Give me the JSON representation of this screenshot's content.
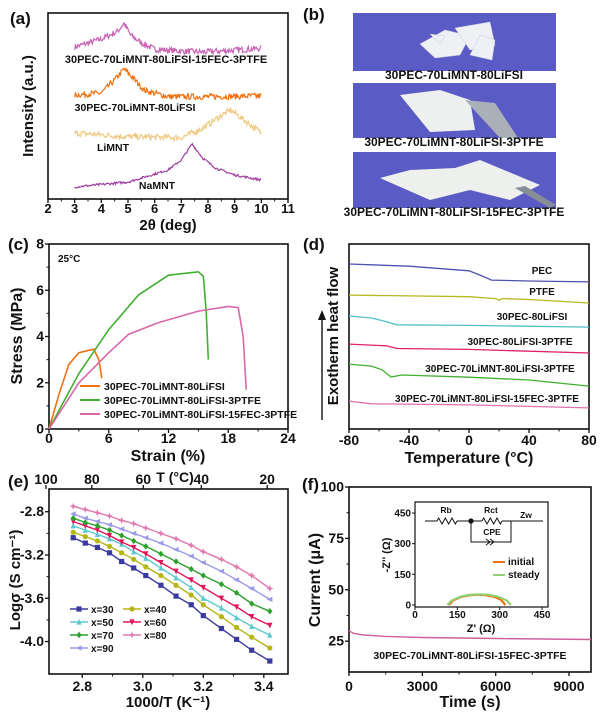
{
  "photos": {
    "panel_label": "(b)",
    "background_color": "#5b5bc6",
    "items": [
      {
        "caption": "30PEC-70LiMNT-80LiFSI",
        "content": "white flakes"
      },
      {
        "caption": "30PEC-70LiMNT-80LiFSI-3PTFE",
        "content": "flexible film on metal rod"
      },
      {
        "caption": "30PEC-70LiMNT-80LiFSI-15FEC-3PTFE",
        "content": "flexible film on metal rod"
      }
    ]
  },
  "chart_data": [
    {
      "panel_label": "(a)",
      "type": "line",
      "xlabel": "2θ (deg)",
      "ylabel": "Intensity (a.u.)",
      "xlim": [
        2,
        11
      ],
      "ylim": [
        0,
        100
      ],
      "xticks": [
        "2",
        "3",
        "4",
        "5",
        "6",
        "7",
        "8",
        "9",
        "10",
        "11"
      ],
      "grid": false,
      "series": [
        {
          "name": "30PEC-70LiMNT-80LiFSI-15FEC-3PTFE",
          "color": "#c862b4",
          "points": [
            [
              3,
              81.7
            ],
            [
              4,
              86
            ],
            [
              4.6,
              90
            ],
            [
              4.85,
              94.6
            ],
            [
              5.1,
              88
            ],
            [
              5.5,
              84
            ],
            [
              6,
              80.5
            ],
            [
              7,
              79.5
            ],
            [
              7.8,
              79
            ],
            [
              9,
              80
            ],
            [
              10,
              81
            ]
          ]
        },
        {
          "name": "30PEC-70LiMNT-80LiFSI",
          "color": "#f07010",
          "points": [
            [
              3,
              55.9
            ],
            [
              4,
              57
            ],
            [
              4.5,
              64
            ],
            [
              4.85,
              69.9
            ],
            [
              5.2,
              65
            ],
            [
              5.6,
              58.5
            ],
            [
              6.5,
              55
            ],
            [
              8,
              55
            ],
            [
              10,
              55.4
            ]
          ]
        },
        {
          "name": "LiMNT",
          "color": "#f0c880",
          "points": [
            [
              3,
              35.5
            ],
            [
              5,
              33.5
            ],
            [
              7,
              33
            ],
            [
              7.8,
              38
            ],
            [
              8.5,
              45
            ],
            [
              8.85,
              47.8
            ],
            [
              9.3,
              43
            ],
            [
              10,
              35.5
            ]
          ]
        },
        {
          "name": "NaMNT",
          "color": "#a040a0",
          "points": [
            [
              3,
              6.5
            ],
            [
              5,
              9.1
            ],
            [
              6.5,
              15.6
            ],
            [
              7,
              21
            ],
            [
              7.4,
              29.6
            ],
            [
              7.8,
              22
            ],
            [
              8.3,
              16.5
            ],
            [
              9,
              12.9
            ],
            [
              10,
              10.2
            ]
          ]
        }
      ]
    },
    {
      "panel_label": "(c)",
      "type": "line",
      "xlabel": "Strain (%)",
      "ylabel": "Stress (MPa)",
      "xlim": [
        0,
        24
      ],
      "ylim": [
        0,
        8
      ],
      "xticks": [
        "0",
        "6",
        "12",
        "18",
        "24"
      ],
      "yticks": [
        "0",
        "2",
        "4",
        "6",
        "8"
      ],
      "annotation": "25°C",
      "legend": "bottom-center",
      "series": [
        {
          "name": "30PEC-70LiMNT-80LiFSI",
          "color": "#f07010",
          "points": [
            [
              0,
              0
            ],
            [
              1,
              1.5
            ],
            [
              2,
              2.8
            ],
            [
              3,
              3.3
            ],
            [
              4.5,
              3.45
            ],
            [
              5,
              3.0
            ],
            [
              5.3,
              2.2
            ]
          ]
        },
        {
          "name": "30PEC-70LiMNT-80LiFSI-3PTFE",
          "color": "#40b030",
          "points": [
            [
              0,
              0
            ],
            [
              3,
              2.4
            ],
            [
              6,
              4.3
            ],
            [
              9,
              5.8
            ],
            [
              12,
              6.65
            ],
            [
              15,
              6.8
            ],
            [
              15.5,
              6.6
            ],
            [
              15.8,
              5.0
            ],
            [
              16,
              3.0
            ]
          ]
        },
        {
          "name": "30PEC-70LiMNT-80LiFSI-15FEC-3PTFE",
          "color": "#d868a8",
          "points": [
            [
              0,
              0
            ],
            [
              3,
              2.0
            ],
            [
              6,
              3.3
            ],
            [
              8,
              4.1
            ],
            [
              11,
              4.6
            ],
            [
              15,
              5.1
            ],
            [
              18,
              5.3
            ],
            [
              19,
              5.25
            ],
            [
              19.5,
              4.0
            ],
            [
              19.8,
              1.7
            ]
          ]
        }
      ]
    },
    {
      "panel_label": "(d)",
      "type": "line",
      "xlabel": "Temperature (°C)",
      "ylabel": "Exotherm heat flow",
      "xlim": [
        -80,
        80
      ],
      "ylim": [
        0,
        100
      ],
      "xticks": [
        "-80",
        "-40",
        "0",
        "40",
        "80"
      ],
      "series": [
        {
          "name": "PEC",
          "color": "#5050b0",
          "points": [
            [
              -80,
              89.2
            ],
            [
              -40,
              88
            ],
            [
              0,
              85.5
            ],
            [
              8,
              83
            ],
            [
              15,
              80.5
            ],
            [
              40,
              80
            ],
            [
              80,
              79.5
            ]
          ]
        },
        {
          "name": "PTFE",
          "color": "#b8b820",
          "points": [
            [
              -80,
              72.4
            ],
            [
              0,
              71.5
            ],
            [
              18,
              70.5
            ],
            [
              20,
              69.5
            ],
            [
              22,
              70.5
            ],
            [
              40,
              70
            ],
            [
              80,
              68.1
            ]
          ]
        },
        {
          "name": "30PEC-80LiFSI",
          "color": "#50c0c8",
          "points": [
            [
              -80,
              61.1
            ],
            [
              -65,
              60
            ],
            [
              -55,
              58
            ],
            [
              -48,
              56.3
            ],
            [
              0,
              56
            ],
            [
              80,
              55.1
            ]
          ]
        },
        {
          "name": "30PEC-80LiFSI-3PTFE",
          "color": "#e0206a",
          "points": [
            [
              -80,
              45.9
            ],
            [
              -55,
              45
            ],
            [
              -48,
              43.5
            ],
            [
              0,
              43
            ],
            [
              80,
              41.1
            ]
          ]
        },
        {
          "name": "30PEC-70LiMNT-80LiFSI-3PTFE",
          "color": "#40b030",
          "points": [
            [
              -80,
              35.1
            ],
            [
              -65,
              34
            ],
            [
              -58,
              32
            ],
            [
              -52,
              28.1
            ],
            [
              -45,
              29.2
            ],
            [
              0,
              28
            ],
            [
              40,
              26.5
            ],
            [
              80,
              23.2
            ]
          ]
        },
        {
          "name": "30PEC-70LiMNT-80LiFSI-15FEC-3PTFE",
          "color": "#e070b0",
          "points": [
            [
              -80,
              15.1
            ],
            [
              -65,
              13.6
            ],
            [
              0,
              13
            ],
            [
              80,
              11.4
            ]
          ]
        }
      ]
    },
    {
      "panel_label": "(e)",
      "type": "line",
      "xlabel": "1000/T (K⁻¹)",
      "ylabel": "Logσ (S cm⁻¹)",
      "top_xlabel": "T (°C)",
      "xlim": [
        2.69,
        3.48
      ],
      "ylim": [
        -4.3,
        -2.59
      ],
      "xticks": [
        "2.8",
        "3.0",
        "3.2",
        "3.4"
      ],
      "yticks": [
        "-2.8",
        "-3.2",
        "-3.6",
        "-4.0"
      ],
      "top_xticks": [
        "100",
        "80",
        "60",
        "40",
        "20"
      ],
      "legend": "bottom-left",
      "x": [
        2.77,
        2.81,
        2.85,
        2.89,
        2.93,
        2.97,
        3.01,
        3.06,
        3.11,
        3.16,
        3.2,
        3.26,
        3.31,
        3.36,
        3.42
      ],
      "series": [
        {
          "name": "x=30",
          "color": "#3a3aa0",
          "marker": "square",
          "values": [
            -3.04,
            -3.09,
            -3.13,
            -3.18,
            -3.26,
            -3.32,
            -3.39,
            -3.48,
            -3.58,
            -3.66,
            -3.76,
            -3.88,
            -3.98,
            -4.08,
            -4.18
          ]
        },
        {
          "name": "x=40",
          "color": "#b5b515",
          "marker": "circle",
          "values": [
            -2.99,
            -3.03,
            -3.07,
            -3.12,
            -3.18,
            -3.24,
            -3.31,
            -3.39,
            -3.48,
            -3.57,
            -3.66,
            -3.77,
            -3.87,
            -3.96,
            -4.06
          ]
        },
        {
          "name": "x=50",
          "color": "#5cc8d0",
          "marker": "triangle-up",
          "values": [
            -2.93,
            -2.97,
            -3.01,
            -3.05,
            -3.1,
            -3.17,
            -3.23,
            -3.32,
            -3.41,
            -3.5,
            -3.6,
            -3.69,
            -3.78,
            -3.86,
            -3.94
          ]
        },
        {
          "name": "x=60",
          "color": "#e0155a",
          "marker": "triangle-down",
          "values": [
            -2.89,
            -2.93,
            -2.97,
            -3.02,
            -3.08,
            -3.13,
            -3.19,
            -3.27,
            -3.35,
            -3.43,
            -3.5,
            -3.6,
            -3.68,
            -3.77,
            -3.85
          ]
        },
        {
          "name": "x=70",
          "color": "#2ca02c",
          "marker": "diamond",
          "values": [
            -2.86,
            -2.9,
            -2.93,
            -2.97,
            -3.02,
            -3.07,
            -3.12,
            -3.19,
            -3.26,
            -3.33,
            -3.39,
            -3.47,
            -3.55,
            -3.65,
            -3.72
          ]
        },
        {
          "name": "x=80",
          "color": "#e07ab0",
          "marker": "star",
          "values": [
            -2.75,
            -2.78,
            -2.81,
            -2.84,
            -2.88,
            -2.91,
            -2.95,
            -3.0,
            -3.05,
            -3.11,
            -3.17,
            -3.24,
            -3.31,
            -3.39,
            -3.51
          ]
        },
        {
          "name": "x=90",
          "color": "#9a9ae8",
          "marker": "triangle-left",
          "values": [
            -2.82,
            -2.86,
            -2.89,
            -2.92,
            -2.96,
            -3.0,
            -3.04,
            -3.09,
            -3.15,
            -3.21,
            -3.27,
            -3.35,
            -3.43,
            -3.51,
            -3.61
          ]
        }
      ]
    },
    {
      "panel_label": "(f)",
      "type": "line",
      "xlabel": "Time (s)",
      "ylabel": "Current (μA)",
      "xlim": [
        0,
        9900
      ],
      "ylim": [
        10,
        100
      ],
      "xticks": [
        "0",
        "3000",
        "6000",
        "9000"
      ],
      "yticks": [
        "25",
        "50",
        "75",
        "100"
      ],
      "annotation": "30PEC-70LiMNT-80LiFSI-15FEC-3PTFE",
      "series": [
        {
          "color": "#d060a0",
          "points": [
            [
              0,
              30
            ],
            [
              200,
              28.8
            ],
            [
              600,
              28
            ],
            [
              1500,
              27.3
            ],
            [
              3000,
              26.8
            ],
            [
              6000,
              26.3
            ],
            [
              9900,
              25.8
            ]
          ]
        }
      ]
    },
    {
      "panel_label": "(f) inset",
      "type": "scatter",
      "xlabel": "Z' (Ω)",
      "ylabel": "-Z'' (Ω)",
      "xlim": [
        0,
        471
      ],
      "ylim": [
        -10,
        504
      ],
      "xticks": [
        "0",
        "150",
        "300",
        "450"
      ],
      "yticks": [
        "0",
        "150",
        "300",
        "450"
      ],
      "legend": "right",
      "circuit": {
        "labels": [
          "Rb",
          "Rct",
          "CPE",
          "Zw"
        ]
      },
      "series": [
        {
          "name": "initial",
          "color": "#f07010",
          "points": [
            [
              120,
              0
            ],
            [
              135,
              22
            ],
            [
              160,
              38
            ],
            [
              190,
              47
            ],
            [
              220,
              50
            ],
            [
              250,
              48
            ],
            [
              280,
              40
            ],
            [
              305,
              25
            ],
            [
              320,
              0
            ]
          ]
        },
        {
          "name": "steady",
          "color": "#90d070",
          "points": [
            [
              115,
              0
            ],
            [
              130,
              22
            ],
            [
              160,
              40
            ],
            [
              190,
              49
            ],
            [
              225,
              52
            ],
            [
              260,
              50
            ],
            [
              295,
              40
            ],
            [
              325,
              22
            ],
            [
              340,
              0
            ]
          ]
        }
      ]
    }
  ]
}
